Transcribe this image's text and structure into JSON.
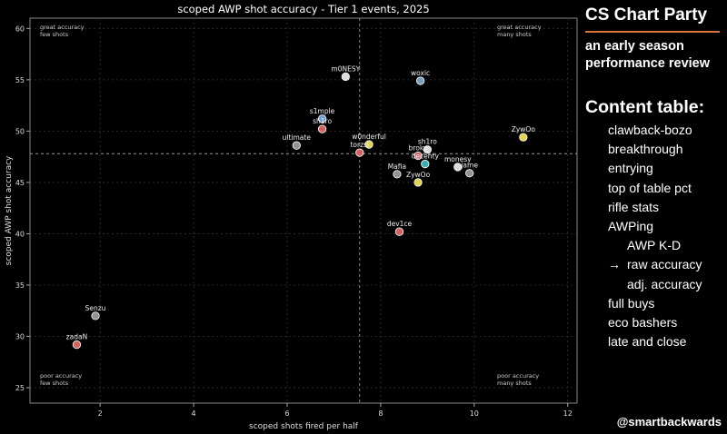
{
  "chart_data": {
    "type": "scatter",
    "title": "scoped AWP shot accuracy - Tier 1 events, 2025",
    "xlabel": "scoped shots fired per half",
    "ylabel": "scoped AWP shot accuracy",
    "xlim": [
      0.5,
      12.2
    ],
    "ylim": [
      23.5,
      61
    ],
    "xticks": [
      2,
      4,
      6,
      8,
      10,
      12
    ],
    "yticks": [
      25,
      30,
      35,
      40,
      45,
      50,
      55,
      60
    ],
    "grid": true,
    "reference_lines": {
      "x": 7.55,
      "y": 47.8
    },
    "quadrant_labels": {
      "top_left": [
        "great accuracy",
        "few shots"
      ],
      "top_right": [
        "great accuracy",
        "many shots"
      ],
      "bottom_left": [
        "poor accuracy",
        "few shots"
      ],
      "bottom_right": [
        "poor accuracy",
        "many shots"
      ]
    },
    "points": [
      {
        "label": "m0NESY",
        "x": 7.25,
        "y": 55.3,
        "color": "#e8e8e8"
      },
      {
        "label": "woxic",
        "x": 8.85,
        "y": 54.9,
        "color": "#7ea6c8"
      },
      {
        "label": "ZywOo",
        "x": 11.05,
        "y": 49.4,
        "color": "#f0e050"
      },
      {
        "label": "s1mple",
        "x": 6.75,
        "y": 51.2,
        "color": "#6fa8dc"
      },
      {
        "label": "sh1ro",
        "x": 6.75,
        "y": 50.2,
        "color": "#e06666"
      },
      {
        "label": "ultimate",
        "x": 6.2,
        "y": 48.6,
        "color": "#9a9a9a"
      },
      {
        "label": "w0nderful",
        "x": 7.75,
        "y": 48.7,
        "color": "#f0e050"
      },
      {
        "label": "torzsi",
        "x": 7.55,
        "y": 47.9,
        "color": "#e06666"
      },
      {
        "label": "sh1ro",
        "x": 9.0,
        "y": 48.2,
        "color": "#e8e8e8"
      },
      {
        "label": "broky",
        "x": 8.8,
        "y": 47.6,
        "color": "#e06666"
      },
      {
        "label": "decenty",
        "x": 8.95,
        "y": 46.8,
        "color": "#40b8b8"
      },
      {
        "label": "monesy",
        "x": 9.65,
        "y": 46.5,
        "color": "#e8e8e8"
      },
      {
        "label": "jame",
        "x": 9.9,
        "y": 45.9,
        "color": "#9a9a9a"
      },
      {
        "label": "Mafia",
        "x": 8.35,
        "y": 45.8,
        "color": "#9a9a9a"
      },
      {
        "label": "ZywOo",
        "x": 8.8,
        "y": 45.0,
        "color": "#f0e050"
      },
      {
        "label": "dev1ce",
        "x": 8.4,
        "y": 40.2,
        "color": "#e06666"
      },
      {
        "label": "Senzu",
        "x": 1.9,
        "y": 32.0,
        "color": "#9a9a9a"
      },
      {
        "label": "zadaN",
        "x": 1.5,
        "y": 29.2,
        "color": "#e06666"
      }
    ]
  },
  "panel": {
    "brand": "CS Chart Party",
    "brand_rule_color": "#d9773a",
    "subtitle_lines": [
      "an early season",
      "performance review"
    ],
    "toc_heading": "Content table:",
    "toc_items": [
      {
        "label": "clawback-bozo",
        "level": 0,
        "current": false
      },
      {
        "label": "breakthrough",
        "level": 0,
        "current": false
      },
      {
        "label": "entrying",
        "level": 0,
        "current": false
      },
      {
        "label": "top of table pct",
        "level": 0,
        "current": false
      },
      {
        "label": "rifle stats",
        "level": 0,
        "current": false
      },
      {
        "label": "AWPing",
        "level": 0,
        "current": false
      },
      {
        "label": "AWP K-D",
        "level": 1,
        "current": false
      },
      {
        "label": "raw accuracy",
        "level": 1,
        "current": true
      },
      {
        "label": "adj. accuracy",
        "level": 1,
        "current": false
      },
      {
        "label": "full buys",
        "level": 0,
        "current": false
      },
      {
        "label": "eco bashers",
        "level": 0,
        "current": false
      },
      {
        "label": "late and close",
        "level": 0,
        "current": false
      }
    ],
    "current_marker": "→",
    "handle": "@smartbackwards"
  }
}
